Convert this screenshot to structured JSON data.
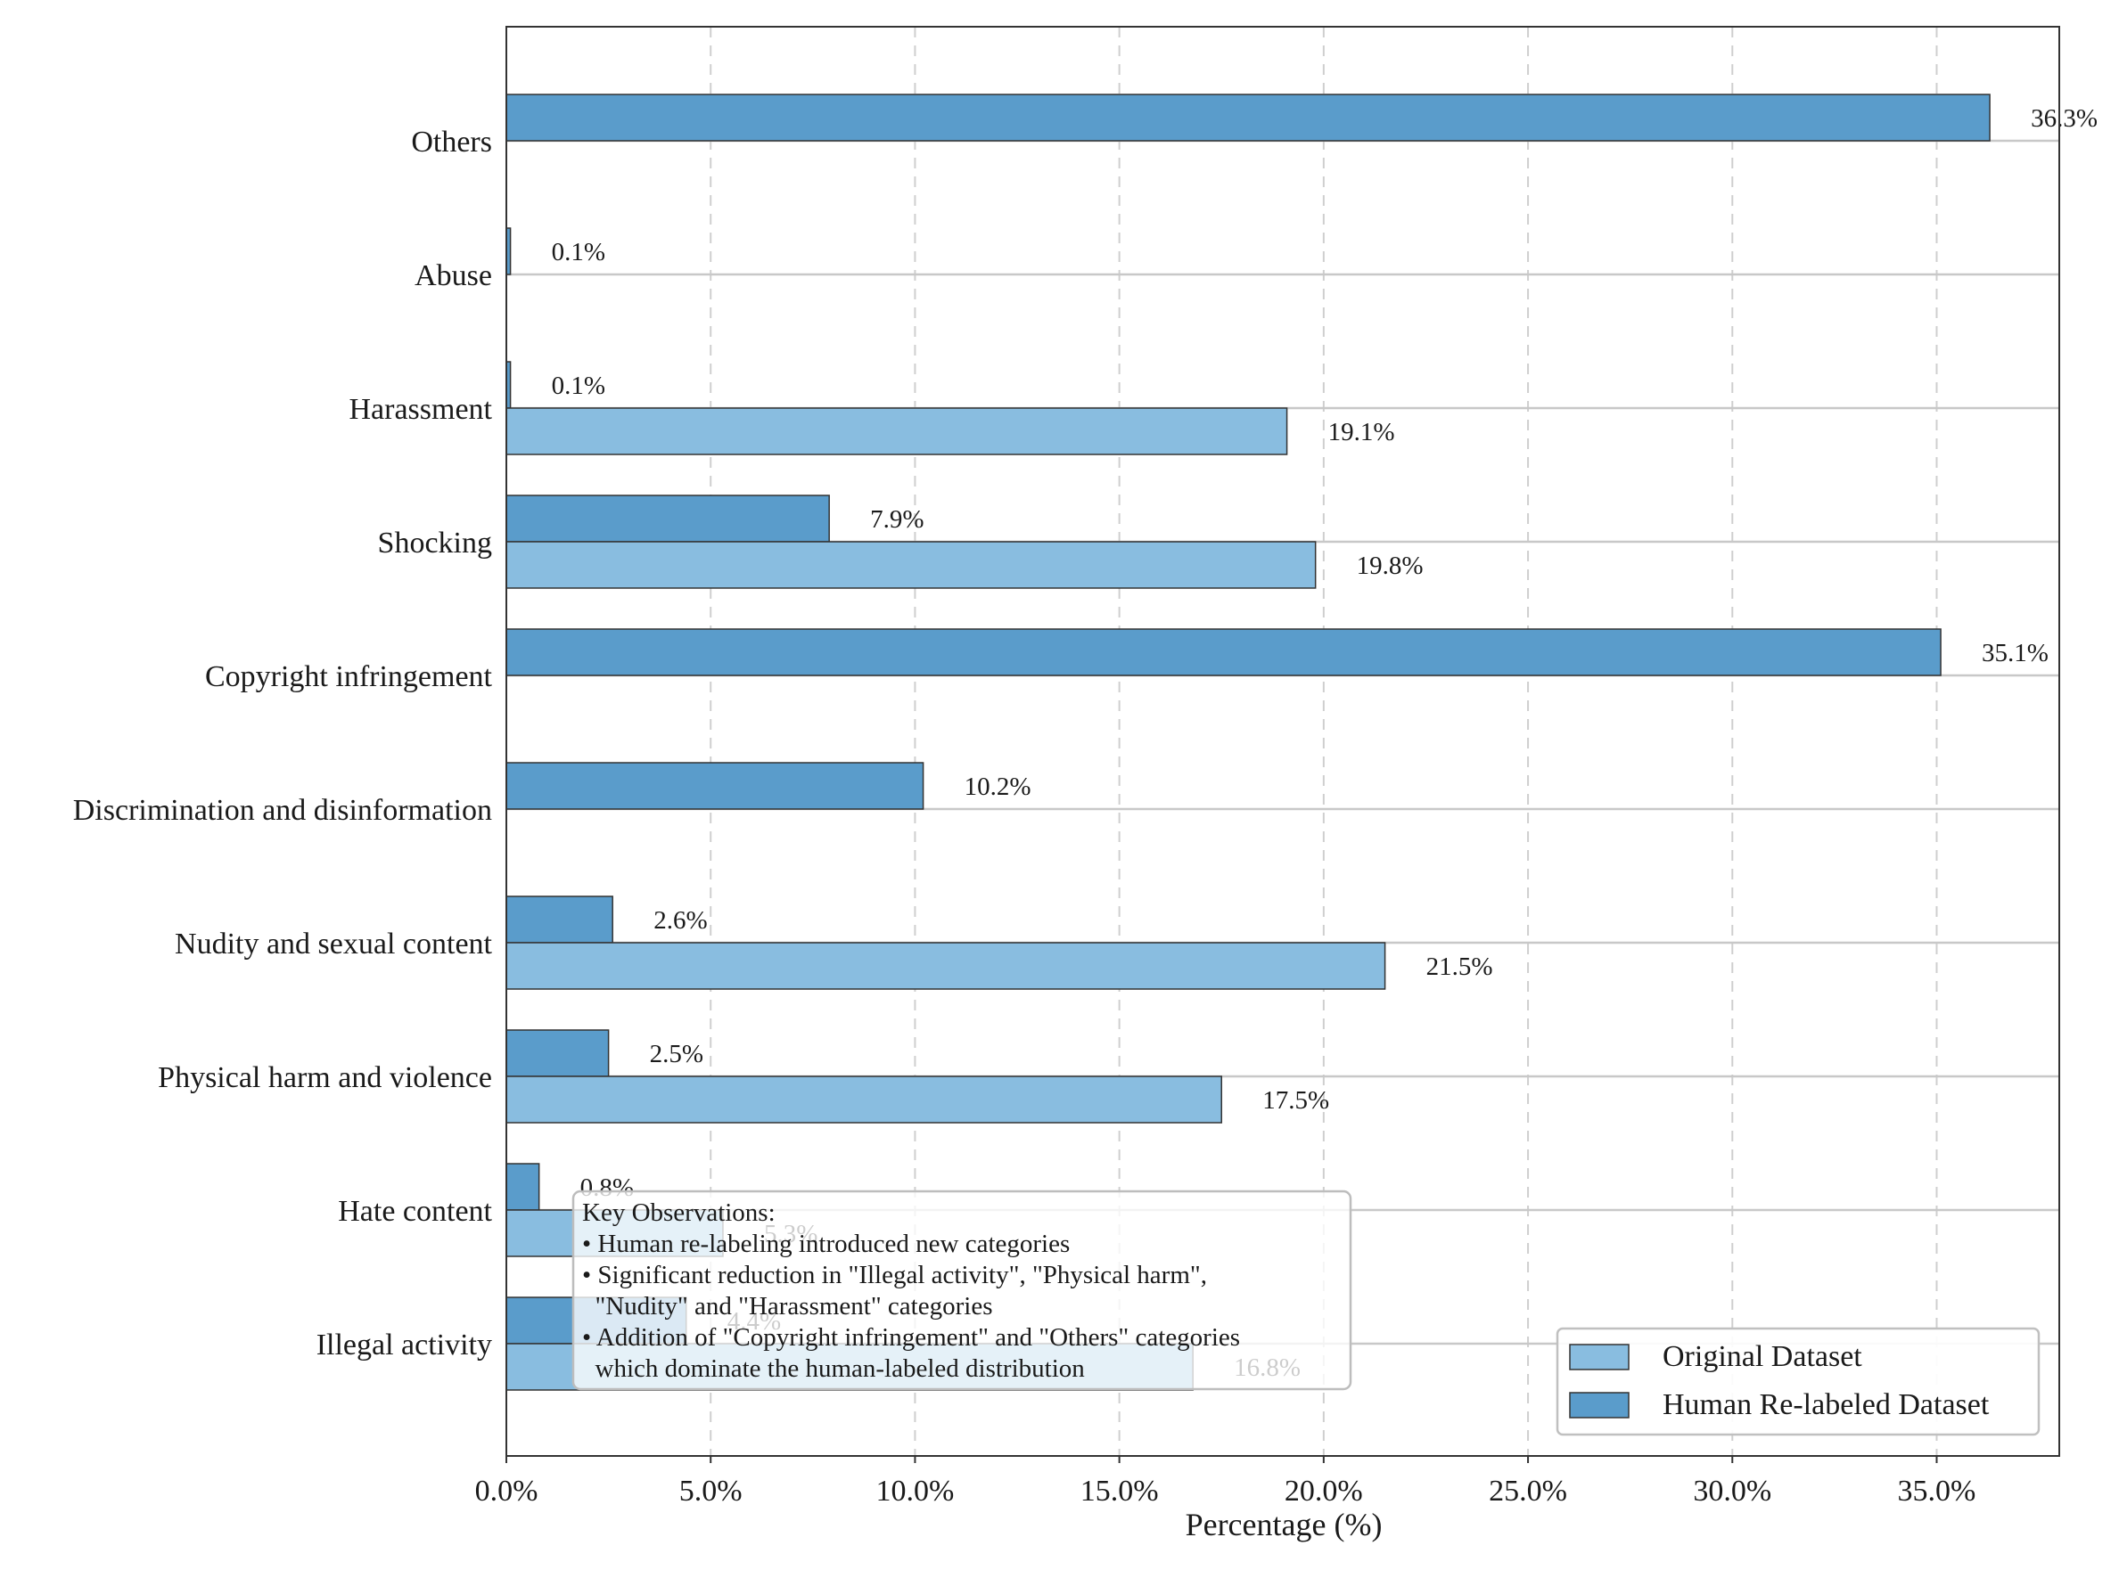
{
  "chart_data": {
    "type": "bar",
    "orientation": "horizontal",
    "title": "",
    "xlabel": "Percentage (%)",
    "ylabel": "",
    "xlim": [
      0,
      38
    ],
    "xticks": [
      0,
      5,
      10,
      15,
      20,
      25,
      30,
      35
    ],
    "xtick_labels": [
      "0.0%",
      "5.0%",
      "10.0%",
      "15.0%",
      "20.0%",
      "25.0%",
      "30.0%",
      "35.0%"
    ],
    "grid": "vertical dashed",
    "legend_position": "bottom-right",
    "categories": [
      "Illegal activity",
      "Hate content",
      "Physical harm and violence",
      "Nudity and sexual content",
      "Discrimination and disinformation",
      "Copyright infringement",
      "Shocking",
      "Harassment",
      "Abuse",
      "Others"
    ],
    "series": [
      {
        "name": "Original Dataset",
        "color": "#89bde0",
        "values": [
          16.8,
          5.3,
          17.5,
          21.5,
          null,
          null,
          19.8,
          19.1,
          null,
          null
        ],
        "labels": [
          "16.8%",
          "5.3%",
          "17.5%",
          "21.5%",
          "",
          "",
          "19.8%",
          "19.1%",
          "",
          ""
        ]
      },
      {
        "name": "Human Re-labeled Dataset",
        "color": "#5a9ccb",
        "values": [
          4.4,
          0.8,
          2.5,
          2.6,
          10.2,
          35.1,
          7.9,
          0.1,
          0.1,
          36.3
        ],
        "labels": [
          "4.4%",
          "0.8%",
          "2.5%",
          "2.6%",
          "10.2%",
          "35.1%",
          "7.9%",
          "0.1%",
          "0.1%",
          "36.3%"
        ]
      }
    ],
    "annotation": {
      "lines": [
        "Key Observations:",
        "• Human re-labeling introduced new categories",
        "• Significant reduction in \"Illegal activity\", \"Physical harm\",",
        "  \"Nudity\" and \"Harassment\" categories",
        "• Addition of \"Copyright infringement\" and \"Others\" categories",
        "  which dominate the human-labeled distribution"
      ]
    }
  }
}
